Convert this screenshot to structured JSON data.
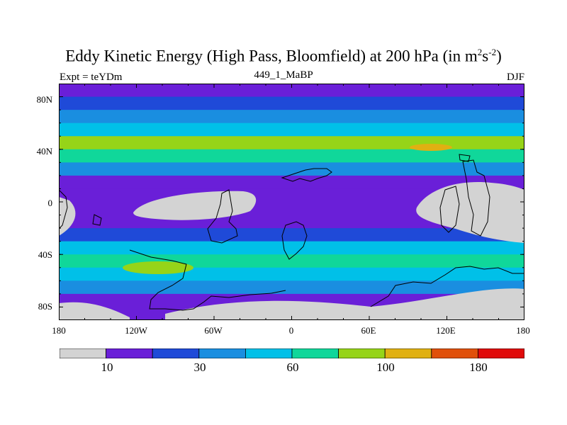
{
  "chart_data": {
    "type": "heatmap",
    "title": "Eddy Kinetic Energy (High Pass, Bloomfield) at 200 hPa (in m",
    "title_units_sup1": "2",
    "title_units_mid": "s",
    "title_units_sup2": "-2",
    "title_units_end": ")",
    "subtitle": "449_1_MaBP",
    "left_string": "Expt = teYDm",
    "right_string": "DJF",
    "x_tick_labels": [
      "180",
      "120W",
      "60W",
      "0",
      "60E",
      "120E",
      "180"
    ],
    "y_tick_labels": [
      "80N",
      "40N",
      "0",
      "40S",
      "80S"
    ],
    "xlim": [
      -180,
      180
    ],
    "ylim": [
      -90,
      90
    ],
    "colorbar_labels": [
      "10",
      "30",
      "60",
      "100",
      "180"
    ],
    "levels": [
      10,
      20,
      30,
      45,
      60,
      80,
      100,
      140,
      180
    ],
    "colors": [
      "#d3d3d3",
      "#6a1fd8",
      "#1f4ad8",
      "#1a8ee0",
      "#00c0e8",
      "#10d79a",
      "#96d418",
      "#e0b012",
      "#e0500a",
      "#e00a0a"
    ],
    "bands_by_latitude": [
      {
        "lat": 90,
        "value": 12
      },
      {
        "lat": 80,
        "value": 15
      },
      {
        "lat": 70,
        "value": 25
      },
      {
        "lat": 60,
        "value": 40
      },
      {
        "lat": 50,
        "value": 70
      },
      {
        "lat": 40,
        "value": 90
      },
      {
        "lat": 30,
        "value": 55
      },
      {
        "lat": 20,
        "value": 25
      },
      {
        "lat": 10,
        "value": 14
      },
      {
        "lat": 0,
        "value": 9
      },
      {
        "lat": -10,
        "value": 11
      },
      {
        "lat": -20,
        "value": 16
      },
      {
        "lat": -30,
        "value": 35
      },
      {
        "lat": -40,
        "value": 60
      },
      {
        "lat": -50,
        "value": 75
      },
      {
        "lat": -60,
        "value": 40
      },
      {
        "lat": -70,
        "value": 22
      },
      {
        "lat": -80,
        "value": 12
      },
      {
        "lat": -90,
        "value": 8
      }
    ]
  }
}
